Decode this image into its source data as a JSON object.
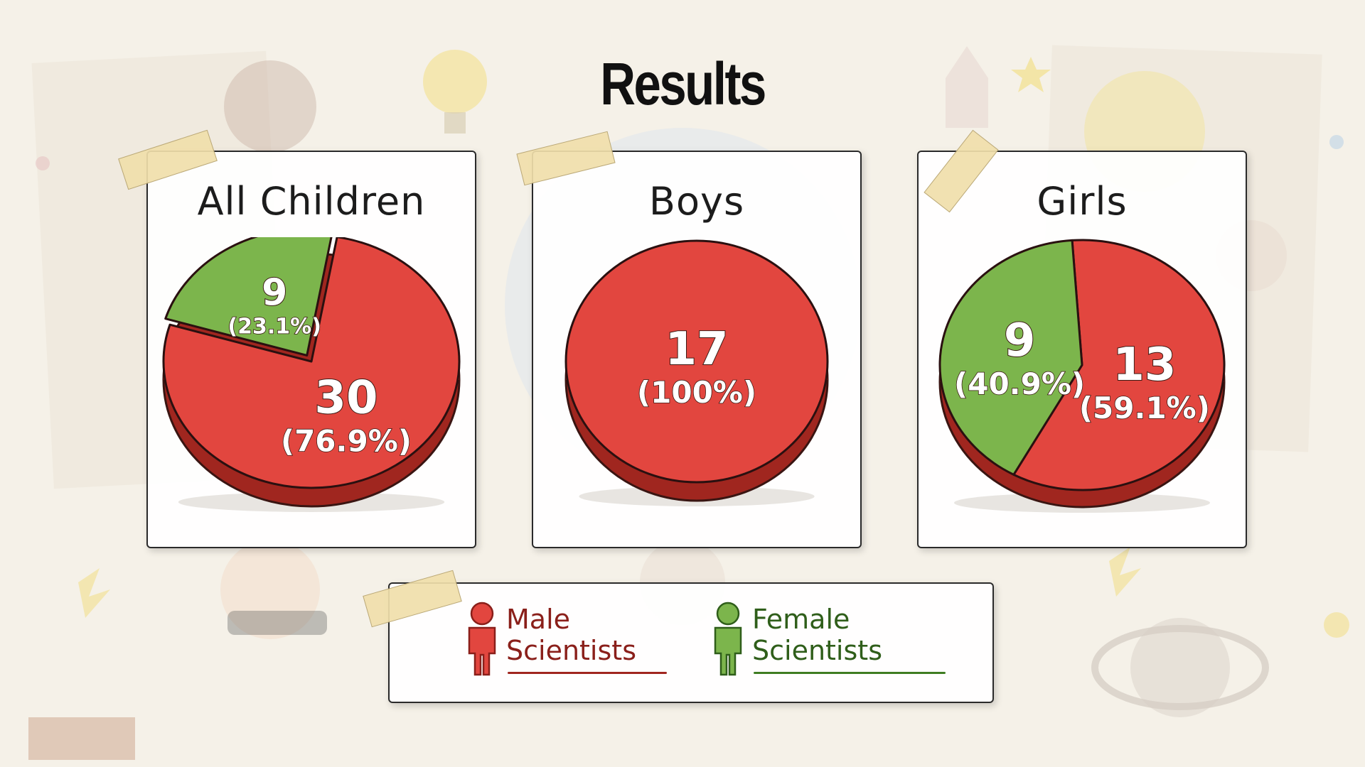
{
  "title": "Results",
  "colors": {
    "male": "#e2463f",
    "female": "#7cb54c",
    "male_dark": "#a0261f",
    "female_dark": "#3f7d22"
  },
  "legend": {
    "male_label": "Male\nScientists",
    "female_label": "Female\nScientists",
    "male_icon": "person-icon",
    "female_icon": "person-icon"
  },
  "chart_data": [
    {
      "type": "pie",
      "title": "All Children",
      "slices": [
        {
          "label": "Male Scientists",
          "value": 30,
          "percent_label": "(76.9%)"
        },
        {
          "label": "Female Scientists",
          "value": 9,
          "percent_label": "(23.1%)"
        }
      ]
    },
    {
      "type": "pie",
      "title": "Boys",
      "slices": [
        {
          "label": "Male Scientists",
          "value": 17,
          "percent_label": "(100%)"
        }
      ]
    },
    {
      "type": "pie",
      "title": "Girls",
      "slices": [
        {
          "label": "Male Scientists",
          "value": 13,
          "percent_label": "(59.1%)"
        },
        {
          "label": "Female Scientists",
          "value": 9,
          "percent_label": "(40.9%)"
        }
      ]
    }
  ]
}
